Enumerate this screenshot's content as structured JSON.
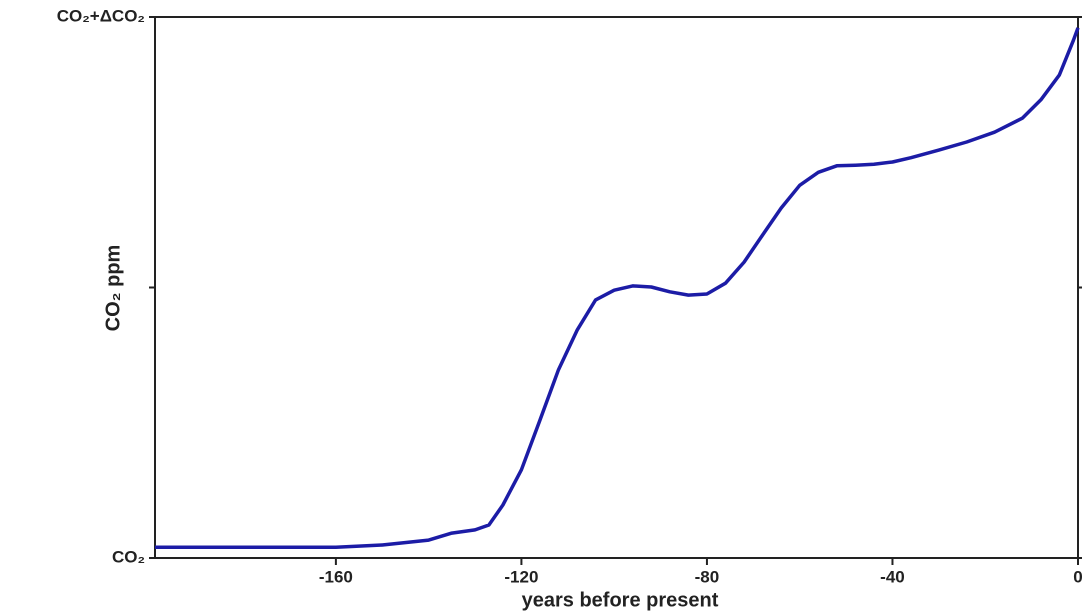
{
  "chart_data": {
    "type": "line",
    "x_label": "years before present",
    "y_label": "CO₂ ppm",
    "xlim": [
      -199,
      0
    ],
    "xticks": [
      -160,
      -120,
      -80,
      -40,
      0
    ],
    "ylim": [
      0,
      1
    ],
    "yticks": [
      {
        "value": 0,
        "label": "CO₂"
      },
      {
        "value": 0.5,
        "label": null
      },
      {
        "value": 1,
        "label": "CO₂+ΔCO₂"
      }
    ],
    "grid": false,
    "series": [
      {
        "color": "#1c1ca6",
        "x": [
          -199,
          -160,
          -150,
          -140,
          -135,
          -130,
          -127,
          -124,
          -120,
          -116,
          -112,
          -108,
          -104,
          -100,
          -96,
          -92,
          -88,
          -84,
          -80,
          -76,
          -72,
          -68,
          -64,
          -60,
          -56,
          -52,
          -48,
          -44,
          -40,
          -36,
          -30,
          -24,
          -18,
          -12,
          -8,
          -4,
          -1,
          0
        ],
        "values": [
          0.02,
          0.02,
          0.024,
          0.033,
          0.046,
          0.052,
          0.061,
          0.098,
          0.163,
          0.255,
          0.348,
          0.421,
          0.477,
          0.495,
          0.503,
          0.501,
          0.492,
          0.486,
          0.488,
          0.508,
          0.547,
          0.597,
          0.647,
          0.689,
          0.713,
          0.725,
          0.726,
          0.728,
          0.732,
          0.74,
          0.754,
          0.769,
          0.787,
          0.813,
          0.847,
          0.893,
          0.957,
          0.98
        ]
      }
    ]
  }
}
